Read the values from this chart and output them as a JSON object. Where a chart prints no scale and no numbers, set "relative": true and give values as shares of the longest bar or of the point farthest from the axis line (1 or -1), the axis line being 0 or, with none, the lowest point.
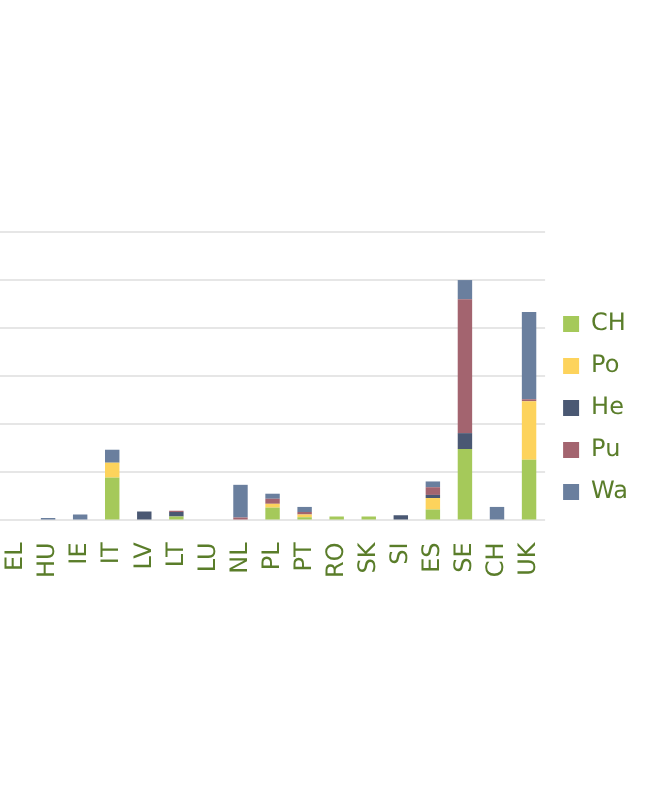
{
  "chart_data": {
    "type": "bar",
    "stacked": true,
    "relative": true,
    "grid": "y",
    "legend": "right",
    "tick_labels": "x",
    "categories": [
      "EL",
      "HU",
      "IE",
      "IT",
      "LV",
      "LT",
      "LU",
      "NL",
      "PL",
      "PT",
      "RO",
      "SK",
      "SI",
      "ES",
      "SE",
      "CH",
      "UK"
    ],
    "series": [
      {
        "name": "CH",
        "color": "#a5c95a",
        "values": [
          0,
          0,
          0,
          0.178,
          0,
          0.016,
          0,
          0,
          0.053,
          0.013,
          0.016,
          0.016,
          0,
          0.045,
          0.297,
          0,
          0.252
        ]
      },
      {
        "name": "Po",
        "color": "#fdd35c",
        "values": [
          0,
          0,
          0,
          0.062,
          0,
          0,
          0,
          0,
          0.016,
          0.011,
          0,
          0,
          0,
          0.048,
          0,
          0,
          0.244
        ]
      },
      {
        "name": "He",
        "color": "#4a5873",
        "values": [
          0,
          0,
          0,
          0,
          0.037,
          0.019,
          0,
          0,
          0,
          0,
          0,
          0,
          0.021,
          0.013,
          0.066,
          0,
          0
        ]
      },
      {
        "name": "Pu",
        "color": "#a3646f",
        "values": [
          0,
          0,
          0,
          0,
          0,
          0.005,
          0,
          0.012,
          0.021,
          0.011,
          null,
          0,
          null,
          0.032,
          0.557,
          0,
          0.008
        ]
      },
      {
        "name": "Wa",
        "color": "#6a7f9e",
        "values": [
          0,
          0.01,
          0.024,
          0.054,
          0,
          0,
          null,
          0.136,
          0.021,
          0.021,
          0,
          0,
          0,
          0.024,
          0.08,
          0.056,
          0.363
        ]
      }
    ]
  }
}
